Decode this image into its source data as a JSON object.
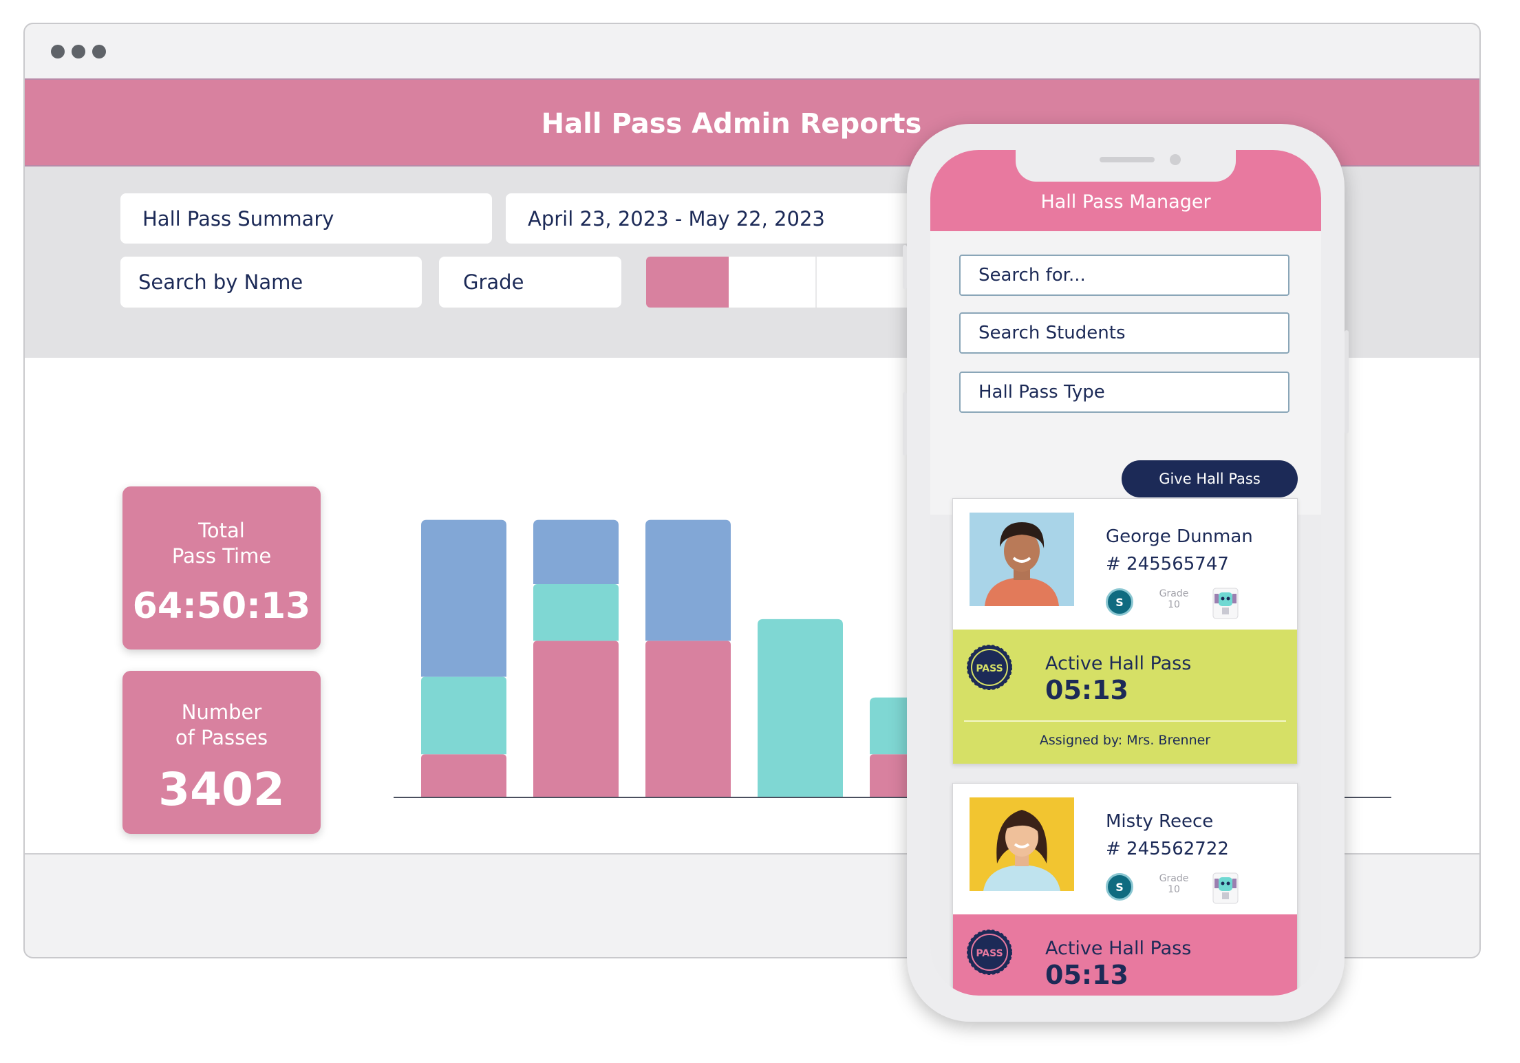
{
  "dashboard": {
    "title": "Hall Pass Admin Reports",
    "report_select": "Hall Pass Summary",
    "date_range": "April 23, 2023 - May 22, 2023",
    "search_name": "Search by Name",
    "grade_select": "Grade",
    "stats": [
      {
        "label": "Total\nPass Time",
        "value": "64:50:13"
      },
      {
        "label": "Number\nof Passes",
        "value": "3402"
      }
    ]
  },
  "colors": {
    "pink": "#d8819f",
    "blue": "#82a7d6",
    "teal": "#7fd7d3",
    "navy": "#1c2a57",
    "lime": "#d6e066",
    "app_pink": "#e8799f"
  },
  "chart_data": {
    "type": "bar",
    "stacked": true,
    "categories": [
      "",
      "",
      "",
      "",
      ""
    ],
    "series": [
      {
        "color": "#d8819f",
        "values": [
          45,
          165,
          165,
          0,
          45
        ]
      },
      {
        "color": "#7fd7d3",
        "values": [
          82,
          60,
          0,
          188,
          60
        ]
      },
      {
        "color": "#82a7d6",
        "values": [
          166,
          68,
          128,
          0,
          0
        ]
      }
    ],
    "ylim": [
      0,
      300
    ],
    "grid": false,
    "legend": "none"
  },
  "phone": {
    "app_title": "Hall Pass Manager",
    "search_placeholder": "Search for...",
    "search_students": "Search Students",
    "pass_type": "Hall Pass Type",
    "give_button": "Give Hall Pass",
    "students": [
      {
        "name": "George Dunman",
        "id": "# 245565747",
        "badge": "S",
        "grade_label": "Grade",
        "grade": "10",
        "pass_seal": "PASS",
        "pass_title": "Active Hall Pass",
        "pass_time": "05:13",
        "assigned_by": "Assigned by: Mrs. Brenner",
        "band_color": "#d6e066",
        "photo_bg": "#a9d4e8"
      },
      {
        "name": "Misty Reece",
        "id": "# 245562722",
        "badge": "S",
        "grade_label": "Grade",
        "grade": "10",
        "pass_seal": "PASS",
        "pass_title": "Active Hall Pass",
        "pass_time": "05:13",
        "band_color": "#e8799f",
        "photo_bg": "#f2c530"
      }
    ]
  }
}
